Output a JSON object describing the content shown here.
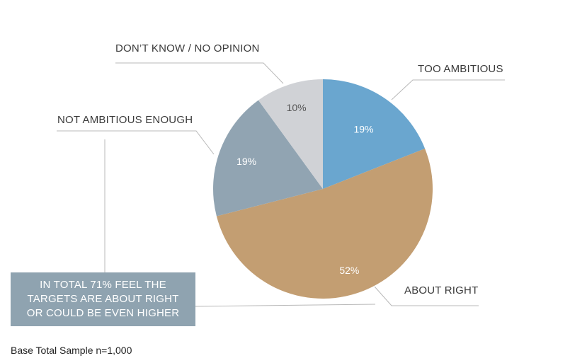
{
  "chart_data": {
    "type": "pie",
    "slices": [
      {
        "label": "TOO AMBITIOUS",
        "value": 19,
        "value_label": "19%",
        "color": "#6aa6cf",
        "label_color": "#ffffff"
      },
      {
        "label": "ABOUT RIGHT",
        "value": 52,
        "value_label": "52%",
        "color": "#c39e72",
        "label_color": "#ffffff"
      },
      {
        "label": "NOT AMBITIOUS ENOUGH",
        "value": 19,
        "value_label": "19%",
        "color": "#91a4b2",
        "label_color": "#ffffff"
      },
      {
        "label": "DON’T KNOW / NO OPINION",
        "value": 10,
        "value_label": "10%",
        "color": "#d0d2d6",
        "label_color": "#555555"
      }
    ],
    "start_angle_deg": 0,
    "direction": "clockwise",
    "legend": "none"
  },
  "callout": {
    "lines": [
      "IN TOTAL 71% FEEL THE",
      "TARGETS ARE ABOUT RIGHT",
      "OR COULD BE EVEN HIGHER"
    ],
    "color": "#8fa3b0"
  },
  "footnote": "Base Total Sample n=1,000"
}
